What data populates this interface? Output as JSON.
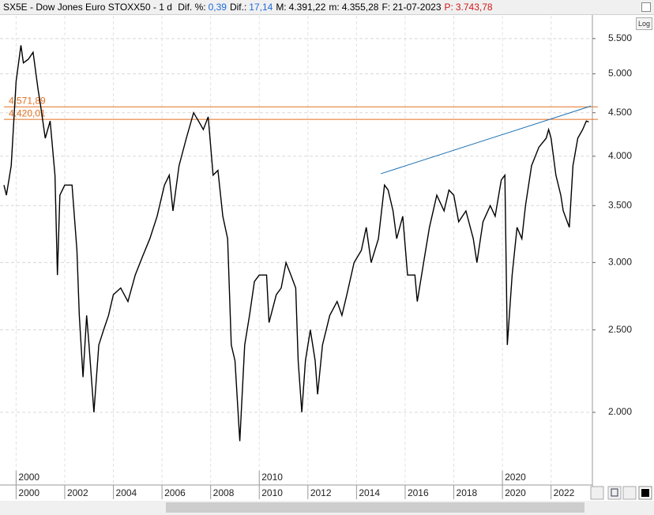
{
  "header": {
    "symbol": "SX5E - Dow Jones Euro STOXX50 - 1 d",
    "fields": [
      {
        "label": "Dif. %:",
        "value": "0,39",
        "color": "blue"
      },
      {
        "label": "Dif.:",
        "value": "17,14",
        "color": "blue"
      },
      {
        "label": "M:",
        "value": "4.391,22",
        "color": "black"
      },
      {
        "label": "m:",
        "value": "4.355,28",
        "color": "black"
      },
      {
        "label": "F:",
        "value": "21-07-2023",
        "color": "black"
      },
      {
        "label": "P:",
        "value": "3.743,78",
        "color": "red"
      }
    ]
  },
  "log_button": "Log",
  "chart_data": {
    "type": "line",
    "log_scale": true,
    "grid": true,
    "color": "#000000",
    "x": [
      1999.5,
      1999.6,
      1999.8,
      2000.0,
      2000.2,
      2000.3,
      2000.5,
      2000.7,
      2000.9,
      2001.0,
      2001.2,
      2001.4,
      2001.6,
      2001.7,
      2001.8,
      2002.0,
      2002.3,
      2002.5,
      2002.6,
      2002.75,
      2002.9,
      2003.0,
      2003.2,
      2003.4,
      2003.6,
      2003.8,
      2004.0,
      2004.3,
      2004.6,
      2004.9,
      2005.2,
      2005.5,
      2005.8,
      2006.1,
      2006.3,
      2006.45,
      2006.7,
      2007.0,
      2007.3,
      2007.5,
      2007.7,
      2007.9,
      2008.1,
      2008.3,
      2008.5,
      2008.7,
      2008.85,
      2009.0,
      2009.2,
      2009.4,
      2009.6,
      2009.8,
      2010.0,
      2010.3,
      2010.4,
      2010.7,
      2010.9,
      2011.1,
      2011.3,
      2011.5,
      2011.6,
      2011.75,
      2011.9,
      2012.1,
      2012.3,
      2012.4,
      2012.6,
      2012.9,
      2013.2,
      2013.4,
      2013.6,
      2013.9,
      2014.2,
      2014.4,
      2014.6,
      2014.9,
      2015.15,
      2015.3,
      2015.5,
      2015.65,
      2015.9,
      2016.1,
      2016.4,
      2016.5,
      2016.8,
      2017.0,
      2017.3,
      2017.6,
      2017.8,
      2018.0,
      2018.2,
      2018.5,
      2018.8,
      2018.95,
      2019.2,
      2019.5,
      2019.7,
      2019.95,
      2020.1,
      2020.2,
      2020.4,
      2020.6,
      2020.8,
      2020.95,
      2021.2,
      2021.5,
      2021.8,
      2021.9,
      2022.0,
      2022.2,
      2022.4,
      2022.5,
      2022.75,
      2022.9,
      2023.1,
      2023.3,
      2023.45,
      2023.55
    ],
    "values": [
      3700,
      3600,
      3900,
      4900,
      5400,
      5150,
      5200,
      5300,
      4800,
      4600,
      4200,
      4400,
      3800,
      2900,
      3600,
      3700,
      3700,
      3100,
      2600,
      2200,
      2600,
      2400,
      2000,
      2400,
      2500,
      2600,
      2750,
      2800,
      2700,
      2900,
      3050,
      3200,
      3400,
      3700,
      3800,
      3450,
      3900,
      4200,
      4500,
      4400,
      4300,
      4450,
      3800,
      3850,
      3400,
      3200,
      2400,
      2300,
      1850,
      2400,
      2600,
      2850,
      2900,
      2900,
      2550,
      2750,
      2800,
      3000,
      2900,
      2800,
      2300,
      2000,
      2300,
      2500,
      2300,
      2100,
      2400,
      2600,
      2700,
      2600,
      2750,
      3000,
      3100,
      3300,
      3000,
      3200,
      3700,
      3650,
      3450,
      3200,
      3400,
      2900,
      2900,
      2700,
      3050,
      3300,
      3600,
      3450,
      3650,
      3600,
      3350,
      3450,
      3200,
      3000,
      3350,
      3500,
      3400,
      3750,
      3800,
      2400,
      2900,
      3300,
      3200,
      3500,
      3900,
      4100,
      4200,
      4300,
      4200,
      3800,
      3600,
      3450,
      3300,
      3900,
      4200,
      4300,
      4400,
      4390
    ],
    "xlim": [
      1999.5,
      2023.7
    ],
    "xticks": [
      2000,
      2002,
      2004,
      2006,
      2008,
      2010,
      2012,
      2014,
      2016,
      2018,
      2020,
      2022
    ],
    "xmajor": [
      2000,
      2010,
      2020
    ],
    "ylim": [
      1650,
      5850
    ],
    "yticks": [
      {
        "value": 2000,
        "label": "2.000"
      },
      {
        "value": 2500,
        "label": "2.500"
      },
      {
        "value": 3000,
        "label": "3.000"
      },
      {
        "value": 3500,
        "label": "3.500"
      },
      {
        "value": 4000,
        "label": "4.000"
      },
      {
        "value": 4500,
        "label": "4.500"
      },
      {
        "value": 5000,
        "label": "5.000"
      },
      {
        "value": 5500,
        "label": "5.500"
      }
    ],
    "levels": [
      {
        "value": 4571.89,
        "label": "4.571,89"
      },
      {
        "value": 4420.01,
        "label": "4.420,01"
      }
    ],
    "level_color": "#e07020",
    "trendline": {
      "x": [
        2015.0,
        2023.64
      ],
      "values": [
        3815,
        4582
      ],
      "color": "#1a6fb3"
    }
  }
}
